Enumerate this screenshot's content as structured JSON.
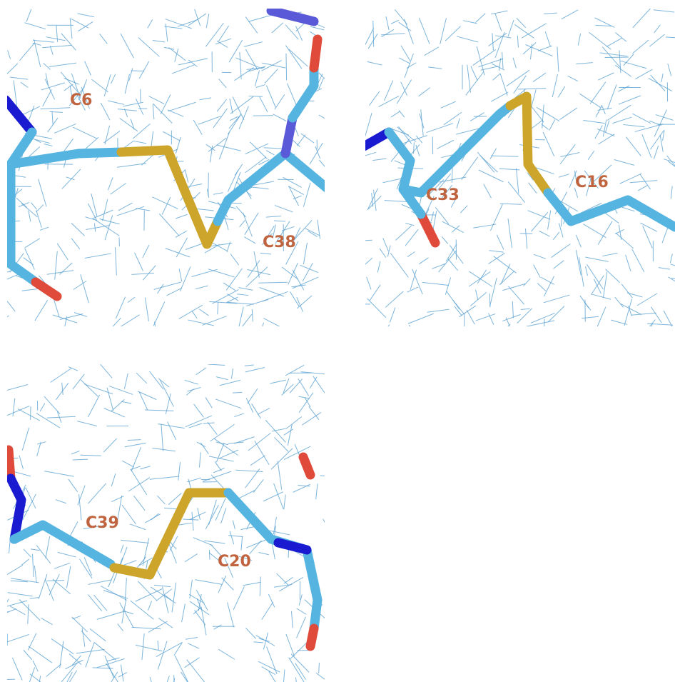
{
  "panels": [
    {
      "labels": [
        "C6",
        "C38"
      ]
    },
    {
      "labels": [
        "C33",
        "C16"
      ]
    },
    {
      "labels": [
        "C39",
        "C20"
      ]
    }
  ]
}
